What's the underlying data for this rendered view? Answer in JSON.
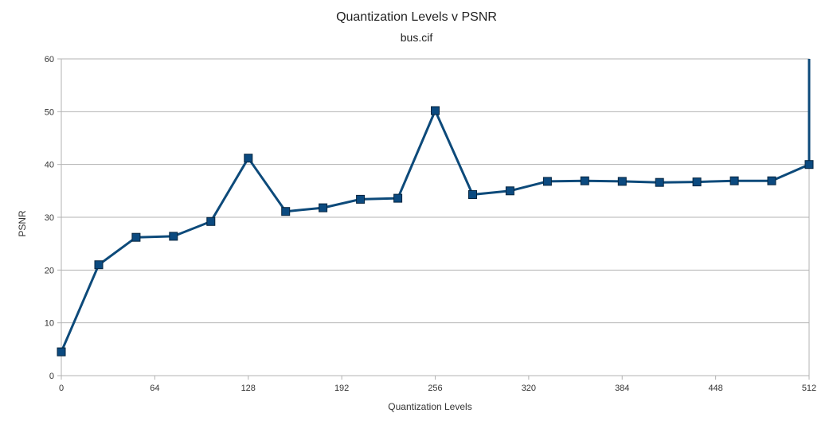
{
  "chart_data": {
    "type": "line",
    "title": "Quantization Levels v PSNR",
    "subtitle": "bus.cif",
    "xlabel": "Quantization Levels",
    "ylabel": "PSNR",
    "xlim": [
      0,
      512
    ],
    "ylim": [
      0,
      60
    ],
    "xticks": [
      "0",
      "64",
      "128",
      "192",
      "256",
      "320",
      "384",
      "448",
      "512"
    ],
    "yticks": [
      "0",
      "10",
      "20",
      "30",
      "40",
      "50",
      "60"
    ],
    "grid": true,
    "legend": "none",
    "series": [
      {
        "color": "#0d4a7a",
        "marker_color": "#0b4a80",
        "x": [
          0,
          25.6,
          51.2,
          76.8,
          102.4,
          128,
          153.6,
          179.2,
          204.8,
          230.4,
          256,
          281.6,
          307.2,
          332.8,
          358.4,
          384,
          409.6,
          435.2,
          460.8,
          486.4,
          512,
          512
        ],
        "y": [
          4.5,
          21.0,
          26.2,
          26.4,
          29.2,
          41.2,
          31.1,
          31.8,
          33.4,
          33.6,
          50.2,
          34.3,
          35.0,
          36.8,
          36.9,
          36.8,
          36.6,
          36.7,
          36.9,
          36.9,
          40.0,
          60.0
        ],
        "markers": [
          true,
          true,
          true,
          true,
          true,
          true,
          true,
          true,
          true,
          true,
          true,
          true,
          true,
          true,
          true,
          true,
          true,
          true,
          true,
          true,
          true,
          false
        ]
      }
    ]
  }
}
